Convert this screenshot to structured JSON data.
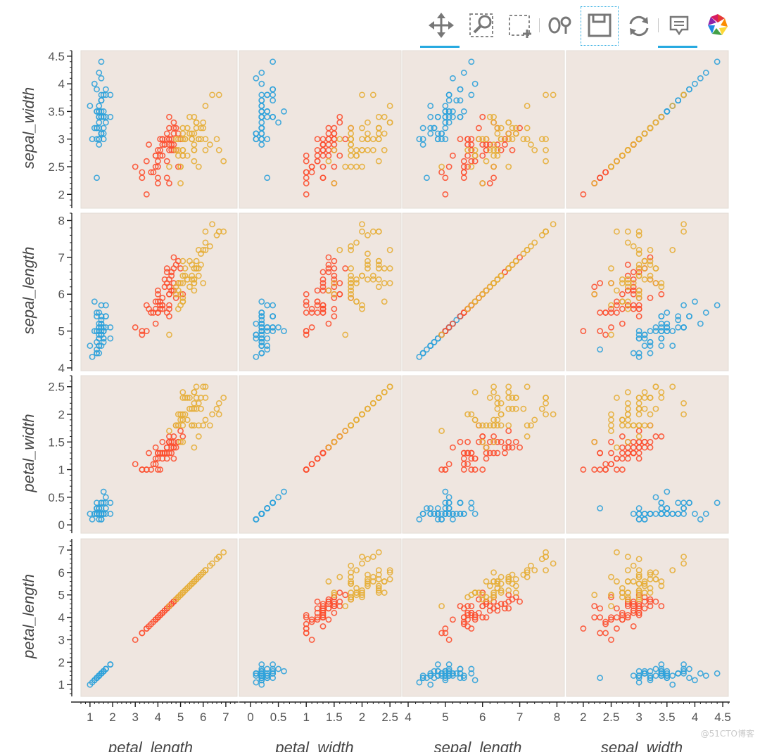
{
  "toolbar": {
    "tools": [
      {
        "id": "pan",
        "icon": "pan-icon",
        "active": true
      },
      {
        "id": "box_zoom",
        "icon": "box-zoom-icon",
        "active": false
      },
      {
        "id": "box_select",
        "icon": "box-select-icon",
        "active": false
      },
      {
        "id": "lasso",
        "icon": "lasso-select-icon",
        "active": false
      },
      {
        "id": "save",
        "icon": "save-icon",
        "active": false
      },
      {
        "id": "reset",
        "icon": "reset-icon",
        "active": false
      },
      {
        "id": "hover",
        "icon": "hover-icon",
        "active": true
      },
      {
        "id": "logo",
        "icon": "bokeh-logo-icon",
        "active": false
      }
    ]
  },
  "watermark": "@51CTO博客",
  "chart_data": {
    "type": "scatter",
    "variables": [
      "sepal_width",
      "sepal_length",
      "petal_width",
      "petal_length"
    ],
    "rows": [
      "sepal_width",
      "sepal_length",
      "petal_width",
      "petal_length"
    ],
    "cols": [
      "petal_length",
      "petal_width",
      "sepal_length",
      "sepal_width"
    ],
    "axis_labels_y": [
      "sepal_width",
      "sepal_length",
      "petal_width",
      "petal_length"
    ],
    "axis_labels_x": [
      "petal_length",
      "petal_width",
      "sepal_length",
      "sepal_width"
    ],
    "ranges": {
      "petal_length": [
        0.6,
        7.5
      ],
      "petal_width": [
        -0.1,
        2.7
      ],
      "sepal_length": [
        4.0,
        8.2
      ],
      "sepal_width": [
        1.8,
        4.6
      ]
    },
    "ticks": {
      "petal_length": [
        1,
        2,
        3,
        4,
        5,
        6,
        7
      ],
      "petal_width": [
        0,
        0.5,
        1,
        1.5,
        2,
        2.5
      ],
      "sepal_length": [
        4,
        5,
        6,
        7,
        8
      ],
      "sepal_width": [
        2,
        2.5,
        3,
        3.5,
        4,
        4.5
      ]
    },
    "y_ticks": {
      "sepal_width": [
        2,
        2.5,
        3,
        3.5,
        4,
        4.5
      ],
      "sepal_length": [
        4,
        5,
        6,
        7,
        8
      ],
      "petal_width": [
        0,
        0.5,
        1,
        1.5,
        2,
        2.5
      ],
      "petal_length": [
        1,
        2,
        3,
        4,
        5,
        6,
        7
      ]
    },
    "series": [
      {
        "color": "#30a2da",
        "points": [
          [
            5.1,
            3.5,
            1.4,
            0.2
          ],
          [
            4.9,
            3.0,
            1.4,
            0.2
          ],
          [
            4.7,
            3.2,
            1.3,
            0.2
          ],
          [
            4.6,
            3.1,
            1.5,
            0.2
          ],
          [
            5.0,
            3.6,
            1.4,
            0.2
          ],
          [
            5.4,
            3.9,
            1.7,
            0.4
          ],
          [
            4.6,
            3.4,
            1.4,
            0.3
          ],
          [
            5.0,
            3.4,
            1.5,
            0.2
          ],
          [
            4.4,
            2.9,
            1.4,
            0.2
          ],
          [
            4.9,
            3.1,
            1.5,
            0.1
          ],
          [
            5.4,
            3.7,
            1.5,
            0.2
          ],
          [
            4.8,
            3.4,
            1.6,
            0.2
          ],
          [
            4.8,
            3.0,
            1.4,
            0.1
          ],
          [
            4.3,
            3.0,
            1.1,
            0.1
          ],
          [
            5.8,
            4.0,
            1.2,
            0.2
          ],
          [
            5.7,
            4.4,
            1.5,
            0.4
          ],
          [
            5.4,
            3.9,
            1.3,
            0.4
          ],
          [
            5.1,
            3.5,
            1.4,
            0.3
          ],
          [
            5.7,
            3.8,
            1.7,
            0.3
          ],
          [
            5.1,
            3.8,
            1.5,
            0.3
          ],
          [
            5.4,
            3.4,
            1.7,
            0.2
          ],
          [
            5.1,
            3.7,
            1.5,
            0.4
          ],
          [
            4.6,
            3.6,
            1.0,
            0.2
          ],
          [
            5.1,
            3.3,
            1.7,
            0.5
          ],
          [
            4.8,
            3.4,
            1.9,
            0.2
          ],
          [
            5.0,
            3.0,
            1.6,
            0.2
          ],
          [
            5.0,
            3.4,
            1.6,
            0.4
          ],
          [
            5.2,
            3.5,
            1.5,
            0.2
          ],
          [
            5.2,
            3.4,
            1.4,
            0.2
          ],
          [
            4.7,
            3.2,
            1.6,
            0.2
          ],
          [
            4.8,
            3.1,
            1.6,
            0.2
          ],
          [
            5.4,
            3.4,
            1.5,
            0.4
          ],
          [
            5.2,
            4.1,
            1.5,
            0.1
          ],
          [
            5.5,
            4.2,
            1.4,
            0.2
          ],
          [
            4.9,
            3.1,
            1.5,
            0.1
          ],
          [
            5.0,
            3.2,
            1.2,
            0.2
          ],
          [
            5.5,
            3.5,
            1.3,
            0.2
          ],
          [
            4.9,
            3.1,
            1.5,
            0.1
          ],
          [
            4.4,
            3.0,
            1.3,
            0.2
          ],
          [
            5.1,
            3.4,
            1.5,
            0.2
          ],
          [
            5.0,
            3.5,
            1.3,
            0.3
          ],
          [
            4.5,
            2.3,
            1.3,
            0.3
          ],
          [
            4.4,
            3.2,
            1.3,
            0.2
          ],
          [
            5.0,
            3.5,
            1.6,
            0.6
          ],
          [
            5.1,
            3.8,
            1.9,
            0.4
          ],
          [
            4.8,
            3.0,
            1.4,
            0.3
          ],
          [
            5.1,
            3.8,
            1.6,
            0.2
          ],
          [
            4.6,
            3.2,
            1.4,
            0.2
          ],
          [
            5.3,
            3.7,
            1.5,
            0.2
          ],
          [
            5.0,
            3.3,
            1.4,
            0.2
          ]
        ]
      },
      {
        "color": "#fc4f30",
        "points": [
          [
            7.0,
            3.2,
            4.7,
            1.4
          ],
          [
            6.4,
            3.2,
            4.5,
            1.5
          ],
          [
            6.9,
            3.1,
            4.9,
            1.5
          ],
          [
            5.5,
            2.3,
            4.0,
            1.3
          ],
          [
            6.5,
            2.8,
            4.6,
            1.5
          ],
          [
            5.7,
            2.8,
            4.5,
            1.3
          ],
          [
            6.3,
            3.3,
            4.7,
            1.6
          ],
          [
            4.9,
            2.4,
            3.3,
            1.0
          ],
          [
            6.6,
            2.9,
            4.6,
            1.3
          ],
          [
            5.2,
            2.7,
            3.9,
            1.4
          ],
          [
            5.0,
            2.0,
            3.5,
            1.0
          ],
          [
            5.9,
            3.0,
            4.2,
            1.5
          ],
          [
            6.0,
            2.2,
            4.0,
            1.0
          ],
          [
            6.1,
            2.9,
            4.7,
            1.4
          ],
          [
            5.6,
            2.9,
            3.6,
            1.3
          ],
          [
            6.7,
            3.1,
            4.4,
            1.4
          ],
          [
            5.6,
            3.0,
            4.5,
            1.5
          ],
          [
            5.8,
            2.7,
            4.1,
            1.0
          ],
          [
            6.2,
            2.2,
            4.5,
            1.5
          ],
          [
            5.6,
            2.5,
            3.9,
            1.1
          ],
          [
            5.9,
            3.2,
            4.8,
            1.8
          ],
          [
            6.1,
            2.8,
            4.0,
            1.3
          ],
          [
            6.3,
            2.5,
            4.9,
            1.5
          ],
          [
            6.1,
            2.8,
            4.7,
            1.2
          ],
          [
            6.4,
            2.9,
            4.3,
            1.3
          ],
          [
            6.6,
            3.0,
            4.4,
            1.4
          ],
          [
            6.8,
            2.8,
            4.8,
            1.4
          ],
          [
            6.7,
            3.0,
            5.0,
            1.7
          ],
          [
            6.0,
            2.9,
            4.5,
            1.5
          ],
          [
            5.7,
            2.6,
            3.5,
            1.0
          ],
          [
            5.5,
            2.4,
            3.8,
            1.1
          ],
          [
            5.5,
            2.4,
            3.7,
            1.0
          ],
          [
            5.8,
            2.7,
            3.9,
            1.2
          ],
          [
            6.0,
            2.7,
            5.1,
            1.6
          ],
          [
            5.4,
            3.0,
            4.5,
            1.5
          ],
          [
            6.0,
            3.4,
            4.5,
            1.6
          ],
          [
            6.7,
            3.1,
            4.7,
            1.5
          ],
          [
            6.3,
            2.3,
            4.4,
            1.3
          ],
          [
            5.6,
            3.0,
            4.1,
            1.3
          ],
          [
            5.5,
            2.5,
            4.0,
            1.3
          ],
          [
            5.5,
            2.6,
            4.4,
            1.2
          ],
          [
            6.1,
            3.0,
            4.6,
            1.4
          ],
          [
            5.8,
            2.6,
            4.0,
            1.2
          ],
          [
            5.0,
            2.3,
            3.3,
            1.0
          ],
          [
            5.6,
            2.7,
            4.2,
            1.3
          ],
          [
            5.7,
            3.0,
            4.2,
            1.2
          ],
          [
            5.7,
            2.9,
            4.2,
            1.3
          ],
          [
            6.2,
            2.9,
            4.3,
            1.3
          ],
          [
            5.1,
            2.5,
            3.0,
            1.1
          ],
          [
            5.7,
            2.8,
            4.1,
            1.3
          ]
        ]
      },
      {
        "color": "#e5ae38",
        "points": [
          [
            6.3,
            3.3,
            6.0,
            2.5
          ],
          [
            5.8,
            2.7,
            5.1,
            1.9
          ],
          [
            7.1,
            3.0,
            5.9,
            2.1
          ],
          [
            6.3,
            2.9,
            5.6,
            1.8
          ],
          [
            6.5,
            3.0,
            5.8,
            2.2
          ],
          [
            7.6,
            3.0,
            6.6,
            2.1
          ],
          [
            4.9,
            2.5,
            4.5,
            1.7
          ],
          [
            7.3,
            2.9,
            6.3,
            1.8
          ],
          [
            6.7,
            2.5,
            5.8,
            1.8
          ],
          [
            7.2,
            3.6,
            6.1,
            2.5
          ],
          [
            6.5,
            3.2,
            5.1,
            2.0
          ],
          [
            6.4,
            2.7,
            5.3,
            1.9
          ],
          [
            6.8,
            3.0,
            5.5,
            2.1
          ],
          [
            5.7,
            2.5,
            5.0,
            2.0
          ],
          [
            5.8,
            2.8,
            5.1,
            2.4
          ],
          [
            6.4,
            3.2,
            5.3,
            2.3
          ],
          [
            6.5,
            3.0,
            5.5,
            1.8
          ],
          [
            7.7,
            3.8,
            6.7,
            2.2
          ],
          [
            7.7,
            2.6,
            6.9,
            2.3
          ],
          [
            6.0,
            2.2,
            5.0,
            1.5
          ],
          [
            6.9,
            3.2,
            5.7,
            2.3
          ],
          [
            5.6,
            2.8,
            4.9,
            2.0
          ],
          [
            7.7,
            2.8,
            6.7,
            2.0
          ],
          [
            6.3,
            2.7,
            4.9,
            1.8
          ],
          [
            6.7,
            3.3,
            5.7,
            2.1
          ],
          [
            7.2,
            3.2,
            6.0,
            1.8
          ],
          [
            6.2,
            2.8,
            4.8,
            1.8
          ],
          [
            6.1,
            3.0,
            4.9,
            1.8
          ],
          [
            6.4,
            2.8,
            5.6,
            2.1
          ],
          [
            7.2,
            3.0,
            5.8,
            1.6
          ],
          [
            7.4,
            2.8,
            6.1,
            1.9
          ],
          [
            7.9,
            3.8,
            6.4,
            2.0
          ],
          [
            6.4,
            2.8,
            5.6,
            2.2
          ],
          [
            6.3,
            2.8,
            5.1,
            1.5
          ],
          [
            6.1,
            2.6,
            5.6,
            1.4
          ],
          [
            7.7,
            3.0,
            6.1,
            2.3
          ],
          [
            6.3,
            3.4,
            5.6,
            2.4
          ],
          [
            6.4,
            3.1,
            5.5,
            1.8
          ],
          [
            6.0,
            3.0,
            4.8,
            1.8
          ],
          [
            6.9,
            3.1,
            5.4,
            2.1
          ],
          [
            6.7,
            3.1,
            5.6,
            2.4
          ],
          [
            6.9,
            3.1,
            5.1,
            2.3
          ],
          [
            5.8,
            2.7,
            5.1,
            1.9
          ],
          [
            6.8,
            3.2,
            5.9,
            2.3
          ],
          [
            6.7,
            3.3,
            5.7,
            2.5
          ],
          [
            6.7,
            3.0,
            5.2,
            2.3
          ],
          [
            6.3,
            2.5,
            5.0,
            1.9
          ],
          [
            6.5,
            3.0,
            5.2,
            2.0
          ],
          [
            6.2,
            3.4,
            5.4,
            2.3
          ],
          [
            5.9,
            3.0,
            5.1,
            1.8
          ]
        ]
      }
    ],
    "point_field_order": [
      "sepal_length",
      "sepal_width",
      "petal_length",
      "petal_width"
    ],
    "grid": false,
    "legend": "none",
    "background": "#efe6e0"
  }
}
